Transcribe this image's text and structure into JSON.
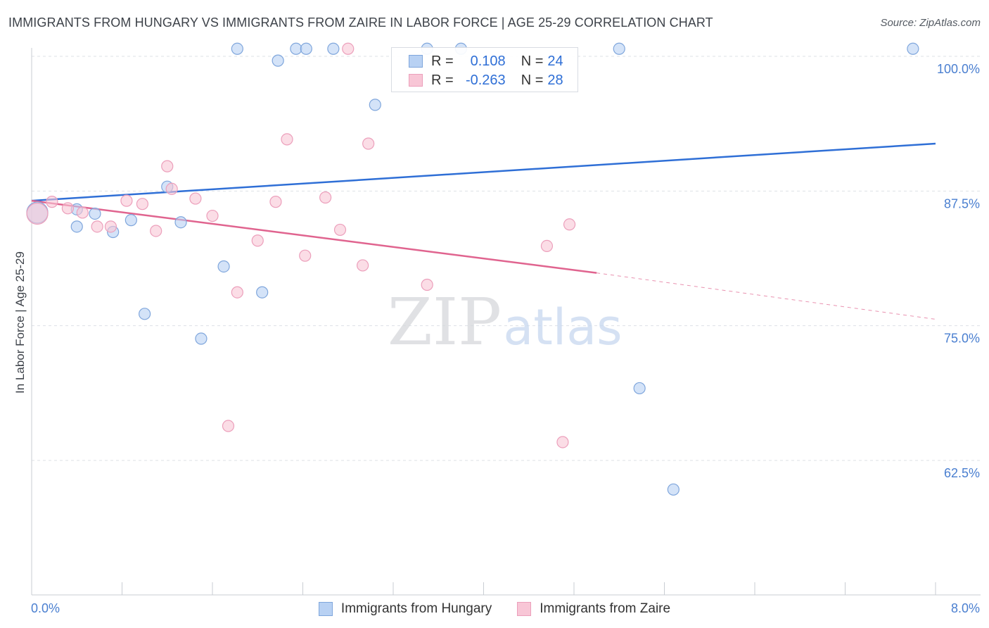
{
  "title": "IMMIGRANTS FROM HUNGARY VS IMMIGRANTS FROM ZAIRE IN LABOR FORCE | AGE 25-29 CORRELATION CHART",
  "source": "Source: ZipAtlas.com",
  "watermark": {
    "zip": "ZIP",
    "atlas": "atlas"
  },
  "legend": {
    "rows": [
      {
        "r_label": "R =",
        "r_value": "0.108",
        "n_label": "N =",
        "n_value": "24"
      },
      {
        "r_label": "R =",
        "r_value": "-0.263",
        "n_label": "N =",
        "n_value": "28"
      }
    ]
  },
  "bottom_legend": {
    "series1": "Immigrants from Hungary",
    "series2": "Immigrants from Zaire"
  },
  "colors": {
    "hungary_fill": "#b8d1f3",
    "hungary_stroke": "#7fa6dc",
    "hungary_line": "#2f6fd6",
    "zaire_fill": "#f8c6d6",
    "zaire_stroke": "#ec9fbb",
    "zaire_line": "#e0648f",
    "tick_text": "#4a7fd0",
    "grid": "#dde1e6"
  },
  "chart_data": {
    "type": "scatter",
    "title": "IMMIGRANTS FROM HUNGARY VS IMMIGRANTS FROM ZAIRE IN LABOR FORCE | AGE 25-29 CORRELATION CHART",
    "xlabel": "",
    "ylabel": "In Labor Force | Age 25-29",
    "xlim": [
      0,
      8
    ],
    "ylim": [
      50,
      102.5
    ],
    "x_tick_labels": [
      {
        "value": 0,
        "label": "0.0%"
      },
      {
        "value": 8,
        "label": "8.0%"
      }
    ],
    "y_tick_labels": [
      {
        "value": 100,
        "label": "100.0%"
      },
      {
        "value": 87.5,
        "label": "87.5%"
      },
      {
        "value": 75,
        "label": "75.0%"
      },
      {
        "value": 62.5,
        "label": "62.5%"
      }
    ],
    "series": [
      {
        "name": "Immigrants from Hungary",
        "R": 0.108,
        "N": 24,
        "points": [
          {
            "x": 0.05,
            "y": 85.5,
            "big": true
          },
          {
            "x": 0.4,
            "y": 85.8
          },
          {
            "x": 0.4,
            "y": 84.2
          },
          {
            "x": 0.56,
            "y": 85.4
          },
          {
            "x": 0.72,
            "y": 83.7
          },
          {
            "x": 0.88,
            "y": 84.8
          },
          {
            "x": 1.0,
            "y": 76.1
          },
          {
            "x": 1.2,
            "y": 87.9
          },
          {
            "x": 1.32,
            "y": 84.6
          },
          {
            "x": 1.5,
            "y": 73.8
          },
          {
            "x": 1.7,
            "y": 80.5
          },
          {
            "x": 1.82,
            "y": 100.7
          },
          {
            "x": 2.04,
            "y": 78.1
          },
          {
            "x": 2.18,
            "y": 99.6
          },
          {
            "x": 2.34,
            "y": 100.7
          },
          {
            "x": 2.43,
            "y": 100.7
          },
          {
            "x": 2.67,
            "y": 100.7
          },
          {
            "x": 3.04,
            "y": 95.5
          },
          {
            "x": 3.5,
            "y": 100.7
          },
          {
            "x": 3.8,
            "y": 100.7
          },
          {
            "x": 5.2,
            "y": 100.7
          },
          {
            "x": 5.38,
            "y": 69.2
          },
          {
            "x": 5.68,
            "y": 59.8
          },
          {
            "x": 7.8,
            "y": 100.7
          }
        ],
        "trend": {
          "x0": 0,
          "y0": 86.6,
          "x1": 8,
          "y1": 91.9
        }
      },
      {
        "name": "Immigrants from Zaire",
        "R": -0.263,
        "N": 28,
        "points": [
          {
            "x": 0.05,
            "y": 85.4,
            "big": true
          },
          {
            "x": 0.18,
            "y": 86.5
          },
          {
            "x": 0.32,
            "y": 85.9
          },
          {
            "x": 0.45,
            "y": 85.5
          },
          {
            "x": 0.58,
            "y": 84.2
          },
          {
            "x": 0.7,
            "y": 84.2
          },
          {
            "x": 0.84,
            "y": 86.6
          },
          {
            "x": 0.98,
            "y": 86.3
          },
          {
            "x": 1.1,
            "y": 83.8
          },
          {
            "x": 1.2,
            "y": 89.8
          },
          {
            "x": 1.24,
            "y": 87.7
          },
          {
            "x": 1.45,
            "y": 86.8
          },
          {
            "x": 1.6,
            "y": 85.2
          },
          {
            "x": 1.74,
            "y": 65.7
          },
          {
            "x": 1.82,
            "y": 78.1
          },
          {
            "x": 2.0,
            "y": 82.9
          },
          {
            "x": 2.16,
            "y": 86.5
          },
          {
            "x": 2.26,
            "y": 92.3
          },
          {
            "x": 2.42,
            "y": 81.5
          },
          {
            "x": 2.6,
            "y": 86.9
          },
          {
            "x": 2.73,
            "y": 83.9
          },
          {
            "x": 2.8,
            "y": 100.7
          },
          {
            "x": 2.93,
            "y": 80.6
          },
          {
            "x": 2.98,
            "y": 91.9
          },
          {
            "x": 3.5,
            "y": 78.8
          },
          {
            "x": 4.56,
            "y": 82.4
          },
          {
            "x": 4.7,
            "y": 64.2
          },
          {
            "x": 4.76,
            "y": 84.4
          }
        ],
        "trend": {
          "x0": 0,
          "y0": 86.6,
          "x1": 5.0,
          "y1": 79.9,
          "dashed_to_x": 8,
          "dashed_to_y": 75.6
        }
      }
    ]
  }
}
